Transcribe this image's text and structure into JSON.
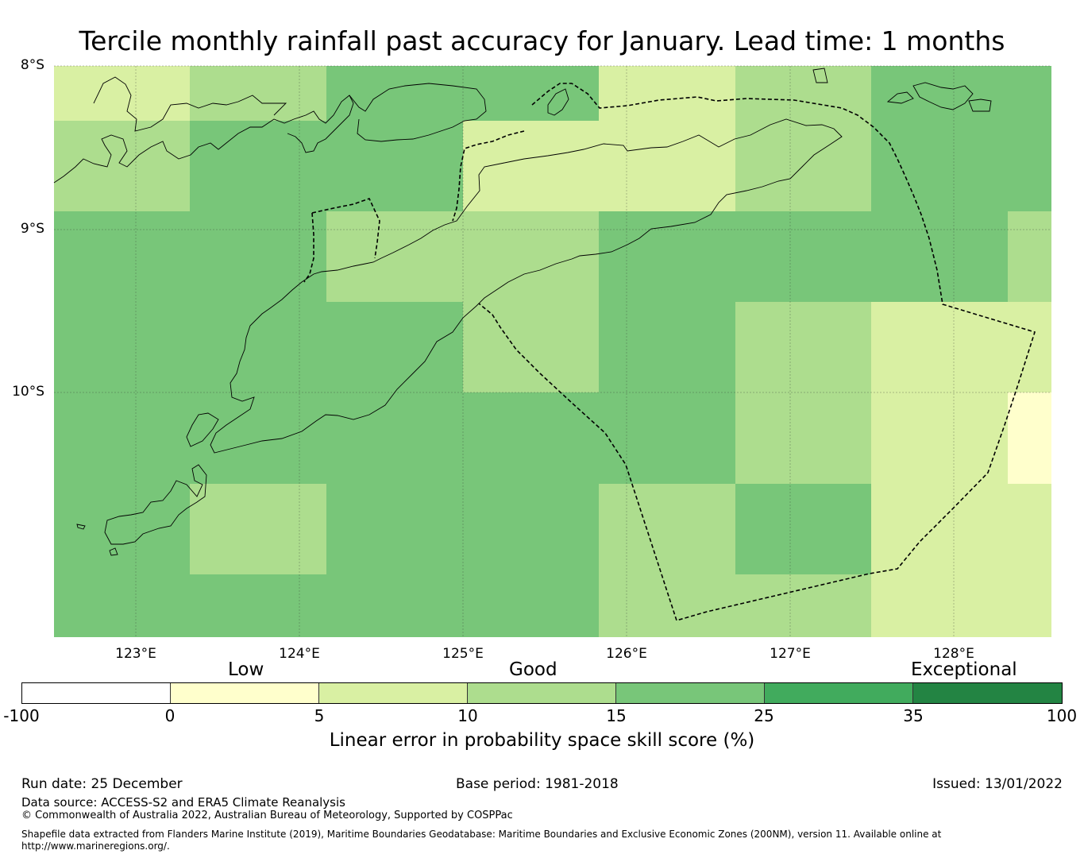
{
  "title": "Tercile monthly rainfall past accuracy for January. Lead time: 1 months",
  "map": {
    "lat_labels": [
      "8°S",
      "9°S",
      "10°S"
    ],
    "lon_labels": [
      "123°E",
      "124°E",
      "125°E",
      "126°E",
      "127°E",
      "128°E"
    ],
    "colors": {
      "very_low": "#ffffff",
      "c0_5": "#ffffcc",
      "c5_10": "#d9f0a3",
      "c10_15": "#addd8e",
      "c15_25": "#78c679",
      "c25_35": "#41ab5d",
      "c35_100": "#238443",
      "coast": "#000000"
    },
    "grid_rows": [
      [
        "c5_10",
        "c10_15",
        "c15_25",
        "c15_25",
        "c5_10",
        "c10_15",
        "c15_25",
        "c15_25"
      ],
      [
        "c10_15",
        "c15_25",
        "c15_25",
        "c5_10",
        "c5_10",
        "c10_15",
        "c15_25",
        "c15_25"
      ],
      [
        "c15_25",
        "c15_25",
        "c10_15",
        "c10_15",
        "c15_25",
        "c15_25",
        "c15_25",
        "c10_15"
      ],
      [
        "c15_25",
        "c15_25",
        "c15_25",
        "c10_15",
        "c15_25",
        "c10_15",
        "c5_10",
        "c5_10"
      ],
      [
        "c15_25",
        "c15_25",
        "c15_25",
        "c15_25",
        "c15_25",
        "c10_15",
        "c5_10",
        "c0_5"
      ],
      [
        "c15_25",
        "c10_15",
        "c15_25",
        "c15_25",
        "c10_15",
        "c15_25",
        "c5_10",
        "c5_10"
      ],
      [
        "c15_25",
        "c15_25",
        "c15_25",
        "c15_25",
        "c10_15",
        "c10_15",
        "c5_10",
        "c5_10"
      ]
    ]
  },
  "colorbar": {
    "category_labels": [
      "Low",
      "Good",
      "Exceptional"
    ],
    "tick_labels": [
      "-100",
      "0",
      "5",
      "10",
      "15",
      "25",
      "35",
      "100"
    ],
    "segment_colors": [
      "very_low",
      "c0_5",
      "c5_10",
      "c10_15",
      "c15_25",
      "c25_35",
      "c35_100"
    ],
    "title": "Linear error in probability space skill score (%)"
  },
  "footer": {
    "run_date": "Run date: 25 December",
    "base_period": "Base period: 1981-2018",
    "issued": "Issued: 13/01/2022",
    "data_source": "Data source: ACCESS-S2 and ERA5 Climate Reanalysis",
    "copyright": "© Commonwealth of Australia 2022, Australian Bureau of Meteorology, Supported by COSPPac",
    "shapefile_line1": "Shapefile data extracted from Flanders Marine Institute (2019), Maritime Boundaries Geodatabase: Maritime Boundaries and Exclusive Economic Zones (200NM), version 11. Available online at",
    "shapefile_line2": "http://www.marineregions.org/."
  }
}
